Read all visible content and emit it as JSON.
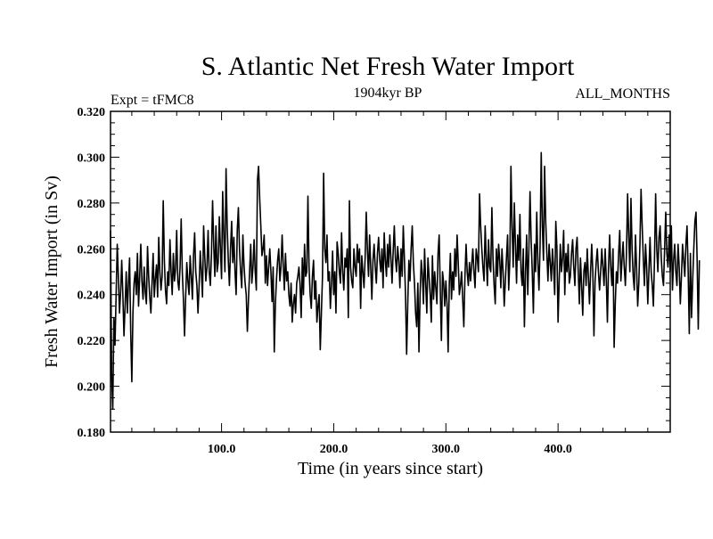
{
  "chart_data": {
    "type": "line",
    "title": "S. Atlantic Net Fresh Water Import",
    "subtitle_left": "Expt = tFMC8",
    "subtitle_center": "1904kyr BP",
    "subtitle_right": "ALL_MONTHS",
    "xlabel": "Time (in years since start)",
    "ylabel": "Fresh Water Import (in Sv)",
    "xlim": [
      1,
      500
    ],
    "ylim": [
      0.18,
      0.32
    ],
    "x_ticks": [
      100,
      200,
      300,
      400
    ],
    "x_tick_labels": [
      "100.0",
      "200.0",
      "300.0",
      "400.0"
    ],
    "x_minor_step": 20,
    "y_ticks": [
      0.18,
      0.2,
      0.22,
      0.24,
      0.26,
      0.28,
      0.3,
      0.32
    ],
    "y_tick_labels": [
      "0.180",
      "0.200",
      "0.220",
      "0.240",
      "0.260",
      "0.280",
      "0.300",
      "0.320"
    ],
    "y_minor_step": 0.005,
    "grid": false,
    "series": [
      {
        "name": "Net Fresh Water Import",
        "color": "#000000",
        "x_start": 1,
        "x_step": 1,
        "values": [
          0.268,
          0.205,
          0.19,
          0.23,
          0.218,
          0.24,
          0.262,
          0.248,
          0.232,
          0.241,
          0.255,
          0.24,
          0.222,
          0.235,
          0.25,
          0.232,
          0.245,
          0.256,
          0.224,
          0.202,
          0.232,
          0.245,
          0.25,
          0.24,
          0.258,
          0.235,
          0.248,
          0.262,
          0.246,
          0.238,
          0.252,
          0.241,
          0.236,
          0.261,
          0.248,
          0.239,
          0.232,
          0.245,
          0.258,
          0.239,
          0.247,
          0.253,
          0.239,
          0.265,
          0.25,
          0.242,
          0.248,
          0.281,
          0.255,
          0.242,
          0.236,
          0.25,
          0.244,
          0.264,
          0.25,
          0.24,
          0.258,
          0.246,
          0.251,
          0.268,
          0.246,
          0.242,
          0.252,
          0.273,
          0.25,
          0.238,
          0.222,
          0.239,
          0.254,
          0.246,
          0.24,
          0.257,
          0.248,
          0.238,
          0.257,
          0.267,
          0.25,
          0.244,
          0.232,
          0.244,
          0.259,
          0.25,
          0.239,
          0.27,
          0.257,
          0.246,
          0.252,
          0.268,
          0.25,
          0.244,
          0.258,
          0.281,
          0.262,
          0.248,
          0.27,
          0.25,
          0.254,
          0.274,
          0.26,
          0.247,
          0.285,
          0.266,
          0.25,
          0.295,
          0.27,
          0.255,
          0.244,
          0.26,
          0.272,
          0.254,
          0.265,
          0.25,
          0.24,
          0.268,
          0.278,
          0.26,
          0.25,
          0.243,
          0.266,
          0.253,
          0.245,
          0.24,
          0.224,
          0.238,
          0.25,
          0.262,
          0.245,
          0.252,
          0.264,
          0.25,
          0.242,
          0.29,
          0.296,
          0.282,
          0.27,
          0.257,
          0.26,
          0.266,
          0.245,
          0.257,
          0.244,
          0.252,
          0.26,
          0.25,
          0.237,
          0.252,
          0.215,
          0.236,
          0.247,
          0.255,
          0.26,
          0.246,
          0.252,
          0.266,
          0.253,
          0.242,
          0.258,
          0.246,
          0.25,
          0.24,
          0.235,
          0.245,
          0.228,
          0.236,
          0.24,
          0.232,
          0.245,
          0.248,
          0.252,
          0.244,
          0.23,
          0.256,
          0.24,
          0.262,
          0.248,
          0.25,
          0.283,
          0.252,
          0.24,
          0.234,
          0.248,
          0.255,
          0.238,
          0.246,
          0.228,
          0.235,
          0.24,
          0.216,
          0.232,
          0.248,
          0.293,
          0.26,
          0.254,
          0.266,
          0.246,
          0.25,
          0.234,
          0.245,
          0.259,
          0.24,
          0.25,
          0.232,
          0.263,
          0.258,
          0.25,
          0.245,
          0.267,
          0.25,
          0.242,
          0.256,
          0.252,
          0.26,
          0.23,
          0.281,
          0.252,
          0.246,
          0.243,
          0.26,
          0.252,
          0.248,
          0.262,
          0.254,
          0.26,
          0.234,
          0.257,
          0.25,
          0.243,
          0.256,
          0.276,
          0.26,
          0.248,
          0.266,
          0.252,
          0.238,
          0.255,
          0.262,
          0.252,
          0.245,
          0.258,
          0.265,
          0.255,
          0.25,
          0.26,
          0.243,
          0.267,
          0.255,
          0.248,
          0.262,
          0.252,
          0.266,
          0.256,
          0.245,
          0.259,
          0.27,
          0.256,
          0.25,
          0.261,
          0.255,
          0.243,
          0.26,
          0.248,
          0.27,
          0.256,
          0.24,
          0.214,
          0.236,
          0.255,
          0.246,
          0.26,
          0.27,
          0.254,
          0.245,
          0.232,
          0.226,
          0.245,
          0.215,
          0.24,
          0.255,
          0.249,
          0.236,
          0.26,
          0.245,
          0.232,
          0.256,
          0.248,
          0.24,
          0.228,
          0.257,
          0.238,
          0.25,
          0.243,
          0.236,
          0.258,
          0.266,
          0.242,
          0.22,
          0.25,
          0.245,
          0.235,
          0.246,
          0.236,
          0.215,
          0.244,
          0.258,
          0.238,
          0.25,
          0.242,
          0.26,
          0.248,
          0.266,
          0.254,
          0.24,
          0.244,
          0.25,
          0.238,
          0.226,
          0.248,
          0.262,
          0.25,
          0.244,
          0.254,
          0.246,
          0.253,
          0.26,
          0.25,
          0.243,
          0.26,
          0.256,
          0.25,
          0.284,
          0.27,
          0.26,
          0.252,
          0.246,
          0.27,
          0.256,
          0.244,
          0.264,
          0.252,
          0.25,
          0.278,
          0.256,
          0.244,
          0.236,
          0.26,
          0.248,
          0.262,
          0.255,
          0.243,
          0.26,
          0.25,
          0.235,
          0.246,
          0.256,
          0.266,
          0.242,
          0.255,
          0.296,
          0.27,
          0.252,
          0.28,
          0.262,
          0.245,
          0.266,
          0.255,
          0.275,
          0.25,
          0.244,
          0.26,
          0.226,
          0.25,
          0.266,
          0.24,
          0.26,
          0.285,
          0.264,
          0.25,
          0.232,
          0.262,
          0.25,
          0.276,
          0.254,
          0.242,
          0.262,
          0.302,
          0.27,
          0.255,
          0.296,
          0.272,
          0.258,
          0.246,
          0.262,
          0.254,
          0.246,
          0.26,
          0.252,
          0.24,
          0.272,
          0.26,
          0.228,
          0.246,
          0.262,
          0.25,
          0.256,
          0.268,
          0.24,
          0.258,
          0.25,
          0.262,
          0.245,
          0.248,
          0.258,
          0.264,
          0.252,
          0.244,
          0.26,
          0.265,
          0.25,
          0.236,
          0.256,
          0.244,
          0.231,
          0.25,
          0.254,
          0.244,
          0.26,
          0.248,
          0.236,
          0.25,
          0.262,
          0.25,
          0.222,
          0.246,
          0.254,
          0.26,
          0.25,
          0.242,
          0.25,
          0.26,
          0.252,
          0.244,
          0.26,
          0.247,
          0.228,
          0.252,
          0.266,
          0.252,
          0.244,
          0.26,
          0.217,
          0.236,
          0.25,
          0.245,
          0.258,
          0.268,
          0.246,
          0.255,
          0.263,
          0.252,
          0.244,
          0.258,
          0.284,
          0.266,
          0.25,
          0.282,
          0.26,
          0.248,
          0.242,
          0.266,
          0.252,
          0.235,
          0.245,
          0.262,
          0.286,
          0.27,
          0.256,
          0.244,
          0.262,
          0.252,
          0.236,
          0.25,
          0.265,
          0.25,
          0.244,
          0.235,
          0.256,
          0.284,
          0.26,
          0.25,
          0.265,
          0.27,
          0.256,
          0.248,
          0.244,
          0.26,
          0.276,
          0.258,
          0.252,
          0.266,
          0.25,
          0.27,
          0.242,
          0.255,
          0.262,
          0.25,
          0.244,
          0.262,
          0.252,
          0.236,
          0.248,
          0.262,
          0.255,
          0.248,
          0.262,
          0.27,
          0.25,
          0.223,
          0.258,
          0.23,
          0.246,
          0.26,
          0.272,
          0.276,
          0.255,
          0.225,
          0.255
        ]
      }
    ]
  }
}
